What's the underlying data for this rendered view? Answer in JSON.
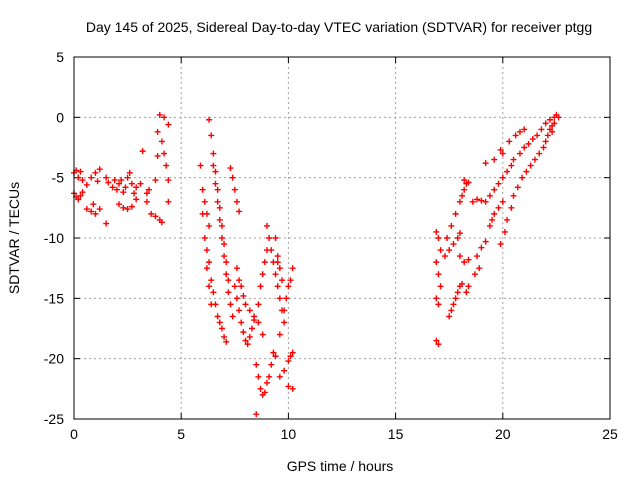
{
  "chart_data": {
    "type": "scatter",
    "title": "Day 145 of 2025, Sidereal Day-to-day VTEC variation (SDTVAR) for receiver ptgg",
    "xlabel": "GPS time / hours",
    "ylabel": "SDTVAR / TECUs",
    "xlim": [
      0,
      25
    ],
    "ylim": [
      -25,
      5
    ],
    "xticks": [
      0,
      5,
      10,
      15,
      20,
      25
    ],
    "yticks": [
      -25,
      -20,
      -15,
      -10,
      -5,
      0,
      5
    ],
    "xtick_labels": [
      "0",
      "5",
      "10",
      "15",
      "20",
      "25"
    ],
    "ytick_labels": [
      "-25",
      "-20",
      "-15",
      "-10",
      "-5",
      "0",
      "5"
    ],
    "grid": true,
    "marker": "+",
    "color": "#ff0000",
    "series": [
      {
        "points": [
          [
            0.0,
            -4.6
          ],
          [
            0.1,
            -4.4
          ],
          [
            0.2,
            -5.0
          ],
          [
            0.3,
            -4.5
          ],
          [
            0.4,
            -5.2
          ],
          [
            0.0,
            -6.3
          ],
          [
            0.1,
            -6.6
          ],
          [
            0.2,
            -6.8
          ],
          [
            0.3,
            -6.5
          ],
          [
            0.4,
            -6.2
          ],
          [
            0.6,
            -5.6
          ],
          [
            0.8,
            -5.0
          ],
          [
            1.0,
            -4.6
          ],
          [
            1.2,
            -4.3
          ],
          [
            1.1,
            -5.3
          ],
          [
            0.6,
            -7.6
          ],
          [
            0.8,
            -7.8
          ],
          [
            1.0,
            -8.0
          ],
          [
            1.2,
            -7.6
          ],
          [
            0.9,
            -7.2
          ],
          [
            1.5,
            -5.0
          ],
          [
            1.6,
            -5.4
          ],
          [
            1.5,
            -8.8
          ],
          [
            1.8,
            -5.8
          ],
          [
            1.9,
            -5.2
          ],
          [
            2.0,
            -6.0
          ],
          [
            2.1,
            -5.5
          ],
          [
            2.2,
            -5.2
          ],
          [
            2.3,
            -6.2
          ],
          [
            2.4,
            -5.8
          ],
          [
            2.5,
            -5.0
          ],
          [
            2.6,
            -4.6
          ],
          [
            2.7,
            -5.5
          ],
          [
            2.8,
            -6.3
          ],
          [
            2.9,
            -6.8
          ],
          [
            2.1,
            -7.2
          ],
          [
            2.3,
            -7.5
          ],
          [
            2.5,
            -7.6
          ],
          [
            2.7,
            -7.4
          ],
          [
            2.9,
            -5.8
          ],
          [
            3.1,
            -5.5
          ],
          [
            3.2,
            -2.8
          ],
          [
            3.4,
            -6.3
          ],
          [
            3.5,
            -6.0
          ],
          [
            3.4,
            -7.0
          ],
          [
            3.8,
            -5.2
          ],
          [
            3.9,
            -3.2
          ],
          [
            3.9,
            -1.2
          ],
          [
            4.0,
            0.2
          ],
          [
            4.1,
            -2.0
          ],
          [
            4.2,
            -3.0
          ],
          [
            4.3,
            -4.0
          ],
          [
            4.4,
            -5.2
          ],
          [
            4.2,
            0.0
          ],
          [
            4.4,
            -0.6
          ],
          [
            3.8,
            -8.2
          ],
          [
            4.0,
            -8.5
          ],
          [
            4.1,
            -8.7
          ],
          [
            4.4,
            -7.0
          ],
          [
            3.6,
            -8.0
          ],
          [
            5.9,
            -4.0
          ],
          [
            6.0,
            -6.0
          ],
          [
            6.1,
            -7.0
          ],
          [
            6.2,
            -8.0
          ],
          [
            6.3,
            -9.0
          ],
          [
            6.2,
            -11.0
          ],
          [
            6.3,
            -12.0
          ],
          [
            6.4,
            -13.5
          ],
          [
            6.5,
            -14.5
          ],
          [
            6.6,
            -15.5
          ],
          [
            6.7,
            -16.5
          ],
          [
            6.8,
            -17.0
          ],
          [
            6.9,
            -17.5
          ],
          [
            7.0,
            -18.2
          ],
          [
            7.1,
            -18.6
          ],
          [
            6.0,
            -8.0
          ],
          [
            6.1,
            -10.0
          ],
          [
            6.2,
            -12.5
          ],
          [
            6.3,
            -14.0
          ],
          [
            6.4,
            -15.5
          ],
          [
            6.3,
            -0.2
          ],
          [
            6.4,
            -1.5
          ],
          [
            6.5,
            -3.0
          ],
          [
            6.6,
            -4.5
          ],
          [
            6.7,
            -6.0
          ],
          [
            6.8,
            -7.5
          ],
          [
            6.9,
            -9.0
          ],
          [
            7.0,
            -10.5
          ],
          [
            7.1,
            -12.0
          ],
          [
            7.2,
            -13.5
          ],
          [
            6.5,
            -4.0
          ],
          [
            6.6,
            -5.5
          ],
          [
            6.7,
            -7.0
          ],
          [
            6.8,
            -8.5
          ],
          [
            6.9,
            -10.0
          ],
          [
            7.0,
            -11.5
          ],
          [
            7.1,
            -13.0
          ],
          [
            7.2,
            -14.5
          ],
          [
            7.3,
            -15.5
          ],
          [
            7.4,
            -16.5
          ],
          [
            7.3,
            -4.2
          ],
          [
            7.4,
            -5.0
          ],
          [
            7.5,
            -6.0
          ],
          [
            7.6,
            -7.0
          ],
          [
            7.7,
            -7.8
          ],
          [
            7.5,
            -14.0
          ],
          [
            7.6,
            -15.0
          ],
          [
            7.7,
            -16.0
          ],
          [
            7.8,
            -17.0
          ],
          [
            7.9,
            -17.8
          ],
          [
            8.0,
            -18.5
          ],
          [
            8.1,
            -18.8
          ],
          [
            8.2,
            -18.2
          ],
          [
            8.3,
            -17.5
          ],
          [
            8.4,
            -16.8
          ],
          [
            7.6,
            -12.5
          ],
          [
            7.7,
            -13.5
          ],
          [
            7.8,
            -14.0
          ],
          [
            7.9,
            -14.8
          ],
          [
            8.0,
            -15.5
          ],
          [
            8.2,
            -16.0
          ],
          [
            8.4,
            -16.5
          ],
          [
            8.6,
            -17.0
          ],
          [
            8.8,
            -18.0
          ],
          [
            8.5,
            -24.6
          ],
          [
            8.6,
            -15.5
          ],
          [
            8.7,
            -14.0
          ],
          [
            8.8,
            -13.0
          ],
          [
            8.9,
            -12.0
          ],
          [
            9.0,
            -11.0
          ],
          [
            8.5,
            -20.5
          ],
          [
            8.6,
            -21.5
          ],
          [
            8.7,
            -22.5
          ],
          [
            8.8,
            -23.0
          ],
          [
            8.9,
            -22.8
          ],
          [
            9.0,
            -22.0
          ],
          [
            9.1,
            -21.5
          ],
          [
            9.2,
            -20.5
          ],
          [
            9.3,
            -19.5
          ],
          [
            9.4,
            -19.8
          ],
          [
            9.0,
            -9.0
          ],
          [
            9.1,
            -10.0
          ],
          [
            9.2,
            -11.0
          ],
          [
            9.3,
            -12.0
          ],
          [
            9.4,
            -13.0
          ],
          [
            9.5,
            -14.0
          ],
          [
            9.6,
            -15.0
          ],
          [
            9.7,
            -16.0
          ],
          [
            9.8,
            -17.0
          ],
          [
            9.6,
            -18.0
          ],
          [
            9.4,
            -10.0
          ],
          [
            9.5,
            -11.5
          ],
          [
            9.6,
            -12.5
          ],
          [
            9.7,
            -13.5
          ],
          [
            9.8,
            -16.0
          ],
          [
            9.9,
            -15.0
          ],
          [
            10.0,
            -14.0
          ],
          [
            10.1,
            -13.5
          ],
          [
            10.2,
            -12.5
          ],
          [
            9.6,
            -21.5
          ],
          [
            9.8,
            -21.0
          ],
          [
            10.0,
            -20.2
          ],
          [
            10.1,
            -19.8
          ],
          [
            10.2,
            -19.5
          ],
          [
            10.0,
            -22.3
          ],
          [
            10.2,
            -22.5
          ],
          [
            9.5,
            -12.0
          ],
          [
            16.9,
            -9.5
          ],
          [
            17.0,
            -10.0
          ],
          [
            17.1,
            -11.0
          ],
          [
            16.9,
            -12.0
          ],
          [
            17.0,
            -13.0
          ],
          [
            17.1,
            -14.0
          ],
          [
            16.9,
            -15.0
          ],
          [
            17.0,
            -15.5
          ],
          [
            16.9,
            -18.5
          ],
          [
            17.0,
            -18.8
          ],
          [
            17.3,
            -11.5
          ],
          [
            17.5,
            -11.0
          ],
          [
            17.7,
            -10.5
          ],
          [
            17.9,
            -10.0
          ],
          [
            18.0,
            -9.6
          ],
          [
            17.4,
            -10.0
          ],
          [
            17.6,
            -9.0
          ],
          [
            17.8,
            -8.0
          ],
          [
            18.0,
            -7.0
          ],
          [
            18.1,
            -6.5
          ],
          [
            18.2,
            -6.0
          ],
          [
            18.3,
            -5.5
          ],
          [
            18.4,
            -5.4
          ],
          [
            18.2,
            -5.2
          ],
          [
            17.5,
            -16.5
          ],
          [
            17.6,
            -16.0
          ],
          [
            17.7,
            -15.5
          ],
          [
            17.8,
            -15.0
          ],
          [
            17.9,
            -14.5
          ],
          [
            18.0,
            -14.0
          ],
          [
            18.1,
            -13.8
          ],
          [
            18.3,
            -14.5
          ],
          [
            18.4,
            -14.0
          ],
          [
            18.0,
            -11.5
          ],
          [
            18.2,
            -12.0
          ],
          [
            18.4,
            -11.8
          ],
          [
            18.8,
            -11.5
          ],
          [
            19.0,
            -10.8
          ],
          [
            19.2,
            -10.3
          ],
          [
            18.6,
            -7.0
          ],
          [
            18.8,
            -6.8
          ],
          [
            19.0,
            -6.9
          ],
          [
            18.9,
            -12.5
          ],
          [
            18.7,
            -13.0
          ],
          [
            19.4,
            -9.0
          ],
          [
            19.5,
            -8.5
          ],
          [
            19.6,
            -8.0
          ],
          [
            19.8,
            -7.5
          ],
          [
            20.0,
            -7.0
          ],
          [
            19.6,
            -6.0
          ],
          [
            19.8,
            -5.5
          ],
          [
            20.0,
            -5.0
          ],
          [
            20.2,
            -4.5
          ],
          [
            20.4,
            -4.0
          ],
          [
            19.2,
            -7.0
          ],
          [
            19.4,
            -6.5
          ],
          [
            19.2,
            -3.8
          ],
          [
            19.6,
            -3.5
          ],
          [
            19.9,
            -10.5
          ],
          [
            20.1,
            -9.5
          ],
          [
            20.2,
            -8.5
          ],
          [
            20.4,
            -7.5
          ],
          [
            20.5,
            -6.5
          ],
          [
            20.7,
            -5.8
          ],
          [
            20.5,
            -3.5
          ],
          [
            20.8,
            -3.0
          ],
          [
            21.0,
            -2.5
          ],
          [
            21.2,
            -2.2
          ],
          [
            21.4,
            -1.8
          ],
          [
            20.9,
            -5.0
          ],
          [
            21.1,
            -4.5
          ],
          [
            21.3,
            -4.0
          ],
          [
            21.5,
            -3.5
          ],
          [
            21.7,
            -3.0
          ],
          [
            21.9,
            -2.5
          ],
          [
            22.0,
            -2.0
          ],
          [
            22.1,
            -1.5
          ],
          [
            22.2,
            -1.0
          ],
          [
            22.3,
            -0.7
          ],
          [
            21.6,
            -1.5
          ],
          [
            21.8,
            -1.0
          ],
          [
            22.0,
            -0.5
          ],
          [
            22.2,
            -0.2
          ],
          [
            22.4,
            0.0
          ],
          [
            22.5,
            0.2
          ],
          [
            22.6,
            0.0
          ],
          [
            22.4,
            -0.5
          ],
          [
            22.3,
            -1.2
          ],
          [
            20.3,
            -2.0
          ],
          [
            19.9,
            -2.7
          ],
          [
            20.6,
            -1.5
          ],
          [
            20.8,
            -1.2
          ],
          [
            21.0,
            -1.0
          ],
          [
            20.0,
            -3.0
          ]
        ]
      }
    ]
  }
}
